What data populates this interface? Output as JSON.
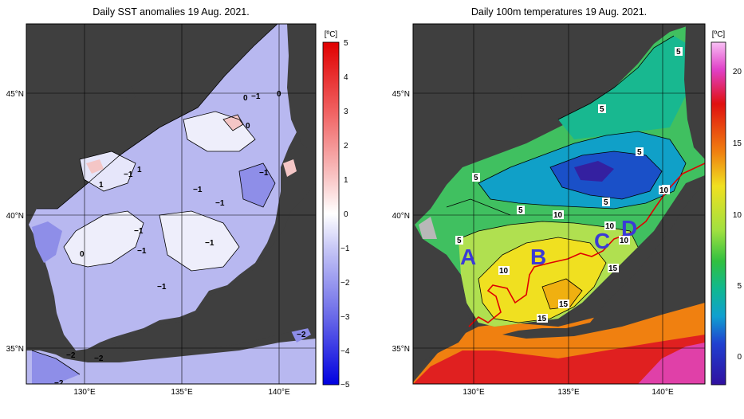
{
  "left_panel": {
    "title": "Daily SST anomalies 19 Aug. 2021.",
    "colorbar_unit": "[ºC]",
    "colorbar_ticks": [
      "5",
      "4",
      "3",
      "2",
      "1",
      "0",
      "−1",
      "−2",
      "−3",
      "−4",
      "−5"
    ],
    "contour_labels": [
      "0",
      "−1",
      "0",
      "0",
      "−1",
      "1",
      "−1",
      "1",
      "−1",
      "−1",
      "−1",
      "−1",
      "−1",
      "0",
      "−1",
      "−2",
      "−2",
      "−2",
      "−2"
    ],
    "colors": {
      "land": "#3f3f3f",
      "neg": "#6b6be6",
      "pos": "#e48a8a",
      "zero": "#ffffff"
    }
  },
  "right_panel": {
    "title": "Daily 100m temperatures 19 Aug. 2021.",
    "colorbar_unit": "[ºC]",
    "colorbar_ticks": [
      "20",
      "15",
      "10",
      "5",
      "0"
    ],
    "contour_labels": [
      "5",
      "5",
      "5",
      "5",
      "5",
      "5",
      "5",
      "5",
      "10",
      "10",
      "10",
      "10",
      "15",
      "15",
      "15",
      "10"
    ],
    "section_markers": [
      "A",
      "B",
      "C",
      "D"
    ],
    "colors": {
      "land": "#3f3f3f",
      "section_line": "#e00000",
      "marker": "#3a3ad6"
    }
  },
  "axes": {
    "lon_ticks": [
      "130°E",
      "135°E",
      "140°E"
    ],
    "lat_ticks": [
      "45°N",
      "40°N",
      "35°N"
    ]
  }
}
